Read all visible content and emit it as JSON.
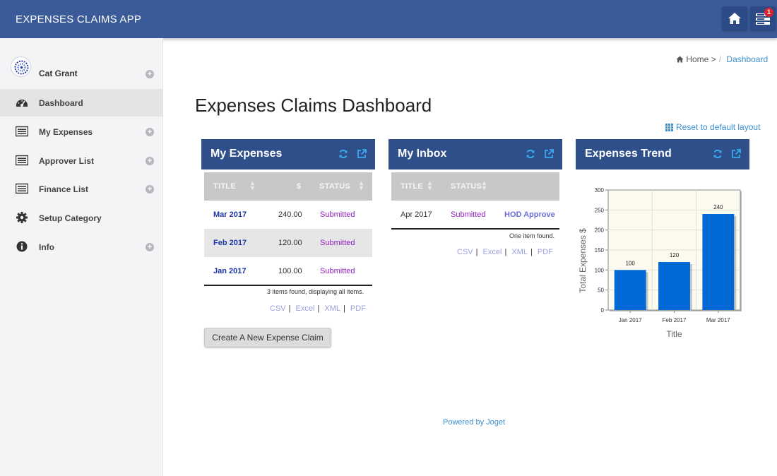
{
  "header": {
    "app_title": "EXPENSES CLAIMS APP",
    "inbox_badge": "1",
    "icons": [
      "home-icon",
      "inbox-icon"
    ],
    "bar_color": "#3a5a98"
  },
  "sidebar": {
    "profile_name": "Cat Grant",
    "items": [
      {
        "label": "Dashboard",
        "icon": "dashboard-icon",
        "active": true,
        "expandable": false
      },
      {
        "label": "My Expenses",
        "icon": "list-icon",
        "active": false,
        "expandable": true
      },
      {
        "label": "Approver List",
        "icon": "list-icon",
        "active": false,
        "expandable": true
      },
      {
        "label": "Finance List",
        "icon": "list-icon",
        "active": false,
        "expandable": true
      },
      {
        "label": "Setup Category",
        "icon": "gear-icon",
        "active": false,
        "expandable": false
      },
      {
        "label": "Info",
        "icon": "info-icon",
        "active": false,
        "expandable": true
      }
    ]
  },
  "breadcrumb": {
    "home": "Home",
    "separator": ">",
    "divider": "/",
    "current": "Dashboard"
  },
  "main": {
    "page_title": "Expenses Claims Dashboard",
    "reset_layout": "Reset to default layout",
    "create_button": "Create A New Expense Claim",
    "footer": "Powered by Joget"
  },
  "my_expenses": {
    "title": "My Expenses",
    "columns": [
      "TITLE",
      "$",
      "STATUS"
    ],
    "rows": [
      {
        "title": "Mar 2017",
        "amount": "240.00",
        "status": "Submitted"
      },
      {
        "title": "Feb 2017",
        "amount": "120.00",
        "status": "Submitted"
      },
      {
        "title": "Jan 2017",
        "amount": "100.00",
        "status": "Submitted"
      }
    ],
    "footer": "3 items found, displaying all items.",
    "exports": [
      "CSV",
      "Excel",
      "XML",
      "PDF"
    ]
  },
  "my_inbox": {
    "title": "My Inbox",
    "columns": [
      "TITLE",
      "STATUS"
    ],
    "rows": [
      {
        "title": "Apr 2017",
        "status": "Submitted",
        "action": "HOD Approve"
      }
    ],
    "footer": "One item found.",
    "exports": [
      "CSV",
      "Excel",
      "XML",
      "PDF"
    ]
  },
  "trend_panel": {
    "title": "Expenses Trend"
  },
  "chart_data": {
    "type": "bar",
    "categories": [
      "Jan 2017",
      "Feb 2017",
      "Mar 2017"
    ],
    "values": [
      100,
      120,
      240
    ],
    "data_labels": [
      "100",
      "120",
      "240"
    ],
    "xlabel": "Title",
    "ylabel": "Total Expenses $",
    "ylim": [
      0,
      300
    ],
    "yticks": [
      0,
      50,
      100,
      150,
      200,
      250,
      300
    ],
    "grid": true,
    "bar_color": "#0069d6",
    "plot_background": "#fdfbf0"
  }
}
